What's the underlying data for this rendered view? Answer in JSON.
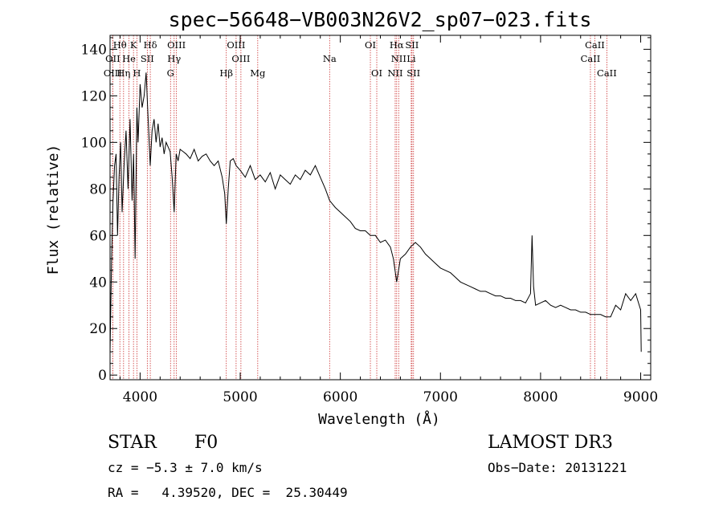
{
  "chart_data": {
    "type": "line",
    "title": "spec−56648−VB003N26V2_sp07−023.fits",
    "xlabel": "Wavelength (Å)",
    "ylabel": "Flux (relative)",
    "xlim": [
      3700,
      9100
    ],
    "ylim": [
      -2,
      146
    ],
    "x_ticks": [
      4000,
      5000,
      6000,
      7000,
      8000,
      9000
    ],
    "x_tick_labels": [
      "4000",
      "5000",
      "6000",
      "7000",
      "8000",
      "9000"
    ],
    "y_ticks": [
      0,
      20,
      40,
      60,
      80,
      100,
      120,
      140
    ],
    "y_tick_labels": [
      "0",
      "20",
      "40",
      "60",
      "80",
      "100",
      "120",
      "140"
    ],
    "series": [
      {
        "name": "spectrum",
        "x": [
          3700,
          3715,
          3730,
          3745,
          3760,
          3775,
          3790,
          3805,
          3820,
          3840,
          3860,
          3880,
          3900,
          3920,
          3935,
          3950,
          3968,
          3980,
          4000,
          4020,
          4040,
          4060,
          4080,
          4101,
          4120,
          4140,
          4160,
          4180,
          4200,
          4220,
          4240,
          4260,
          4280,
          4300,
          4320,
          4340,
          4350,
          4360,
          4380,
          4400,
          4430,
          4460,
          4500,
          4540,
          4580,
          4620,
          4660,
          4700,
          4740,
          4780,
          4820,
          4845,
          4861,
          4880,
          4900,
          4930,
          4960,
          5000,
          5050,
          5100,
          5150,
          5200,
          5250,
          5300,
          5350,
          5400,
          5450,
          5500,
          5550,
          5600,
          5650,
          5700,
          5750,
          5800,
          5850,
          5893,
          5950,
          6000,
          6050,
          6100,
          6150,
          6200,
          6250,
          6300,
          6350,
          6400,
          6450,
          6500,
          6530,
          6563,
          6600,
          6650,
          6700,
          6750,
          6800,
          6850,
          6900,
          6950,
          7000,
          7050,
          7100,
          7150,
          7200,
          7250,
          7300,
          7350,
          7400,
          7450,
          7500,
          7550,
          7600,
          7650,
          7700,
          7750,
          7800,
          7850,
          7900,
          7915,
          7930,
          7950,
          8000,
          8050,
          8100,
          8150,
          8200,
          8250,
          8300,
          8350,
          8400,
          8450,
          8500,
          8550,
          8600,
          8650,
          8700,
          8750,
          8800,
          8850,
          8900,
          8950,
          9000,
          9005
        ],
        "y": [
          10,
          50,
          75,
          90,
          95,
          60,
          85,
          100,
          70,
          90,
          105,
          80,
          110,
          75,
          95,
          50,
          115,
          100,
          125,
          115,
          120,
          130,
          110,
          90,
          105,
          110,
          100,
          108,
          98,
          102,
          95,
          100,
          98,
          96,
          85,
          70,
          82,
          95,
          92,
          97,
          96,
          95,
          93,
          97,
          92,
          94,
          95,
          92,
          90,
          92,
          85,
          78,
          65,
          80,
          92,
          93,
          90,
          88,
          85,
          90,
          84,
          86,
          83,
          87,
          80,
          86,
          84,
          82,
          86,
          84,
          88,
          86,
          90,
          85,
          80,
          75,
          72,
          70,
          68,
          66,
          63,
          62,
          62,
          60,
          60,
          57,
          58,
          55,
          50,
          40,
          50,
          52,
          55,
          57,
          55,
          52,
          50,
          48,
          46,
          45,
          44,
          42,
          40,
          39,
          38,
          37,
          36,
          36,
          35,
          34,
          34,
          33,
          33,
          32,
          32,
          31,
          35,
          60,
          38,
          30,
          31,
          32,
          30,
          29,
          30,
          29,
          28,
          28,
          27,
          27,
          26,
          26,
          26,
          25,
          25,
          30,
          28,
          35,
          32,
          35,
          28,
          10
        ]
      }
    ],
    "line_markers": [
      {
        "label": "Hθ",
        "x": 3798,
        "row": 1
      },
      {
        "label": "K",
        "x": 3934,
        "row": 1
      },
      {
        "label": "Hδ",
        "x": 4102,
        "row": 1
      },
      {
        "label": "OIII",
        "x": 4363,
        "row": 1
      },
      {
        "label": "OIII",
        "x": 4959,
        "row": 1
      },
      {
        "label": "OI",
        "x": 6300,
        "row": 1
      },
      {
        "label": "Hα",
        "x": 6563,
        "row": 1
      },
      {
        "label": "SII",
        "x": 6716,
        "row": 1
      },
      {
        "label": "CaII",
        "x": 8542,
        "row": 1
      },
      {
        "label": "OII",
        "x": 3727,
        "row": 2
      },
      {
        "label": "He",
        "x": 3889,
        "row": 2
      },
      {
        "label": "SII",
        "x": 4072,
        "row": 2
      },
      {
        "label": "Hγ",
        "x": 4340,
        "row": 2
      },
      {
        "label": "OIII",
        "x": 5007,
        "row": 2
      },
      {
        "label": "Na",
        "x": 5893,
        "row": 2
      },
      {
        "label": "NII",
        "x": 6583,
        "row": 2
      },
      {
        "label": "Li",
        "x": 6708,
        "row": 2
      },
      {
        "label": "CaII",
        "x": 8498,
        "row": 2
      },
      {
        "label": "OIII",
        "x": 3727,
        "row": 3
      },
      {
        "label": "Hη",
        "x": 3835,
        "row": 3
      },
      {
        "label": "H",
        "x": 3968,
        "row": 3
      },
      {
        "label": "G",
        "x": 4304,
        "row": 3
      },
      {
        "label": "Hβ",
        "x": 4861,
        "row": 3
      },
      {
        "label": "Mg",
        "x": 5175,
        "row": 3
      },
      {
        "label": "OI",
        "x": 6364,
        "row": 3
      },
      {
        "label": "NII",
        "x": 6548,
        "row": 3
      },
      {
        "label": "SII",
        "x": 6731,
        "row": 3
      },
      {
        "label": "CaII",
        "x": 8662,
        "row": 3
      }
    ],
    "grid": false,
    "marker_color": "#cc3333",
    "line_color": "#000000"
  },
  "info": {
    "object_class": "STAR",
    "subclass": "F0",
    "cz": "cz = −5.3 ± 7.0 km/s",
    "coords": "RA =   4.39520, DEC =  25.30449",
    "survey": "LAMOST DR3",
    "obs_date": "Obs−Date: 20131221"
  }
}
